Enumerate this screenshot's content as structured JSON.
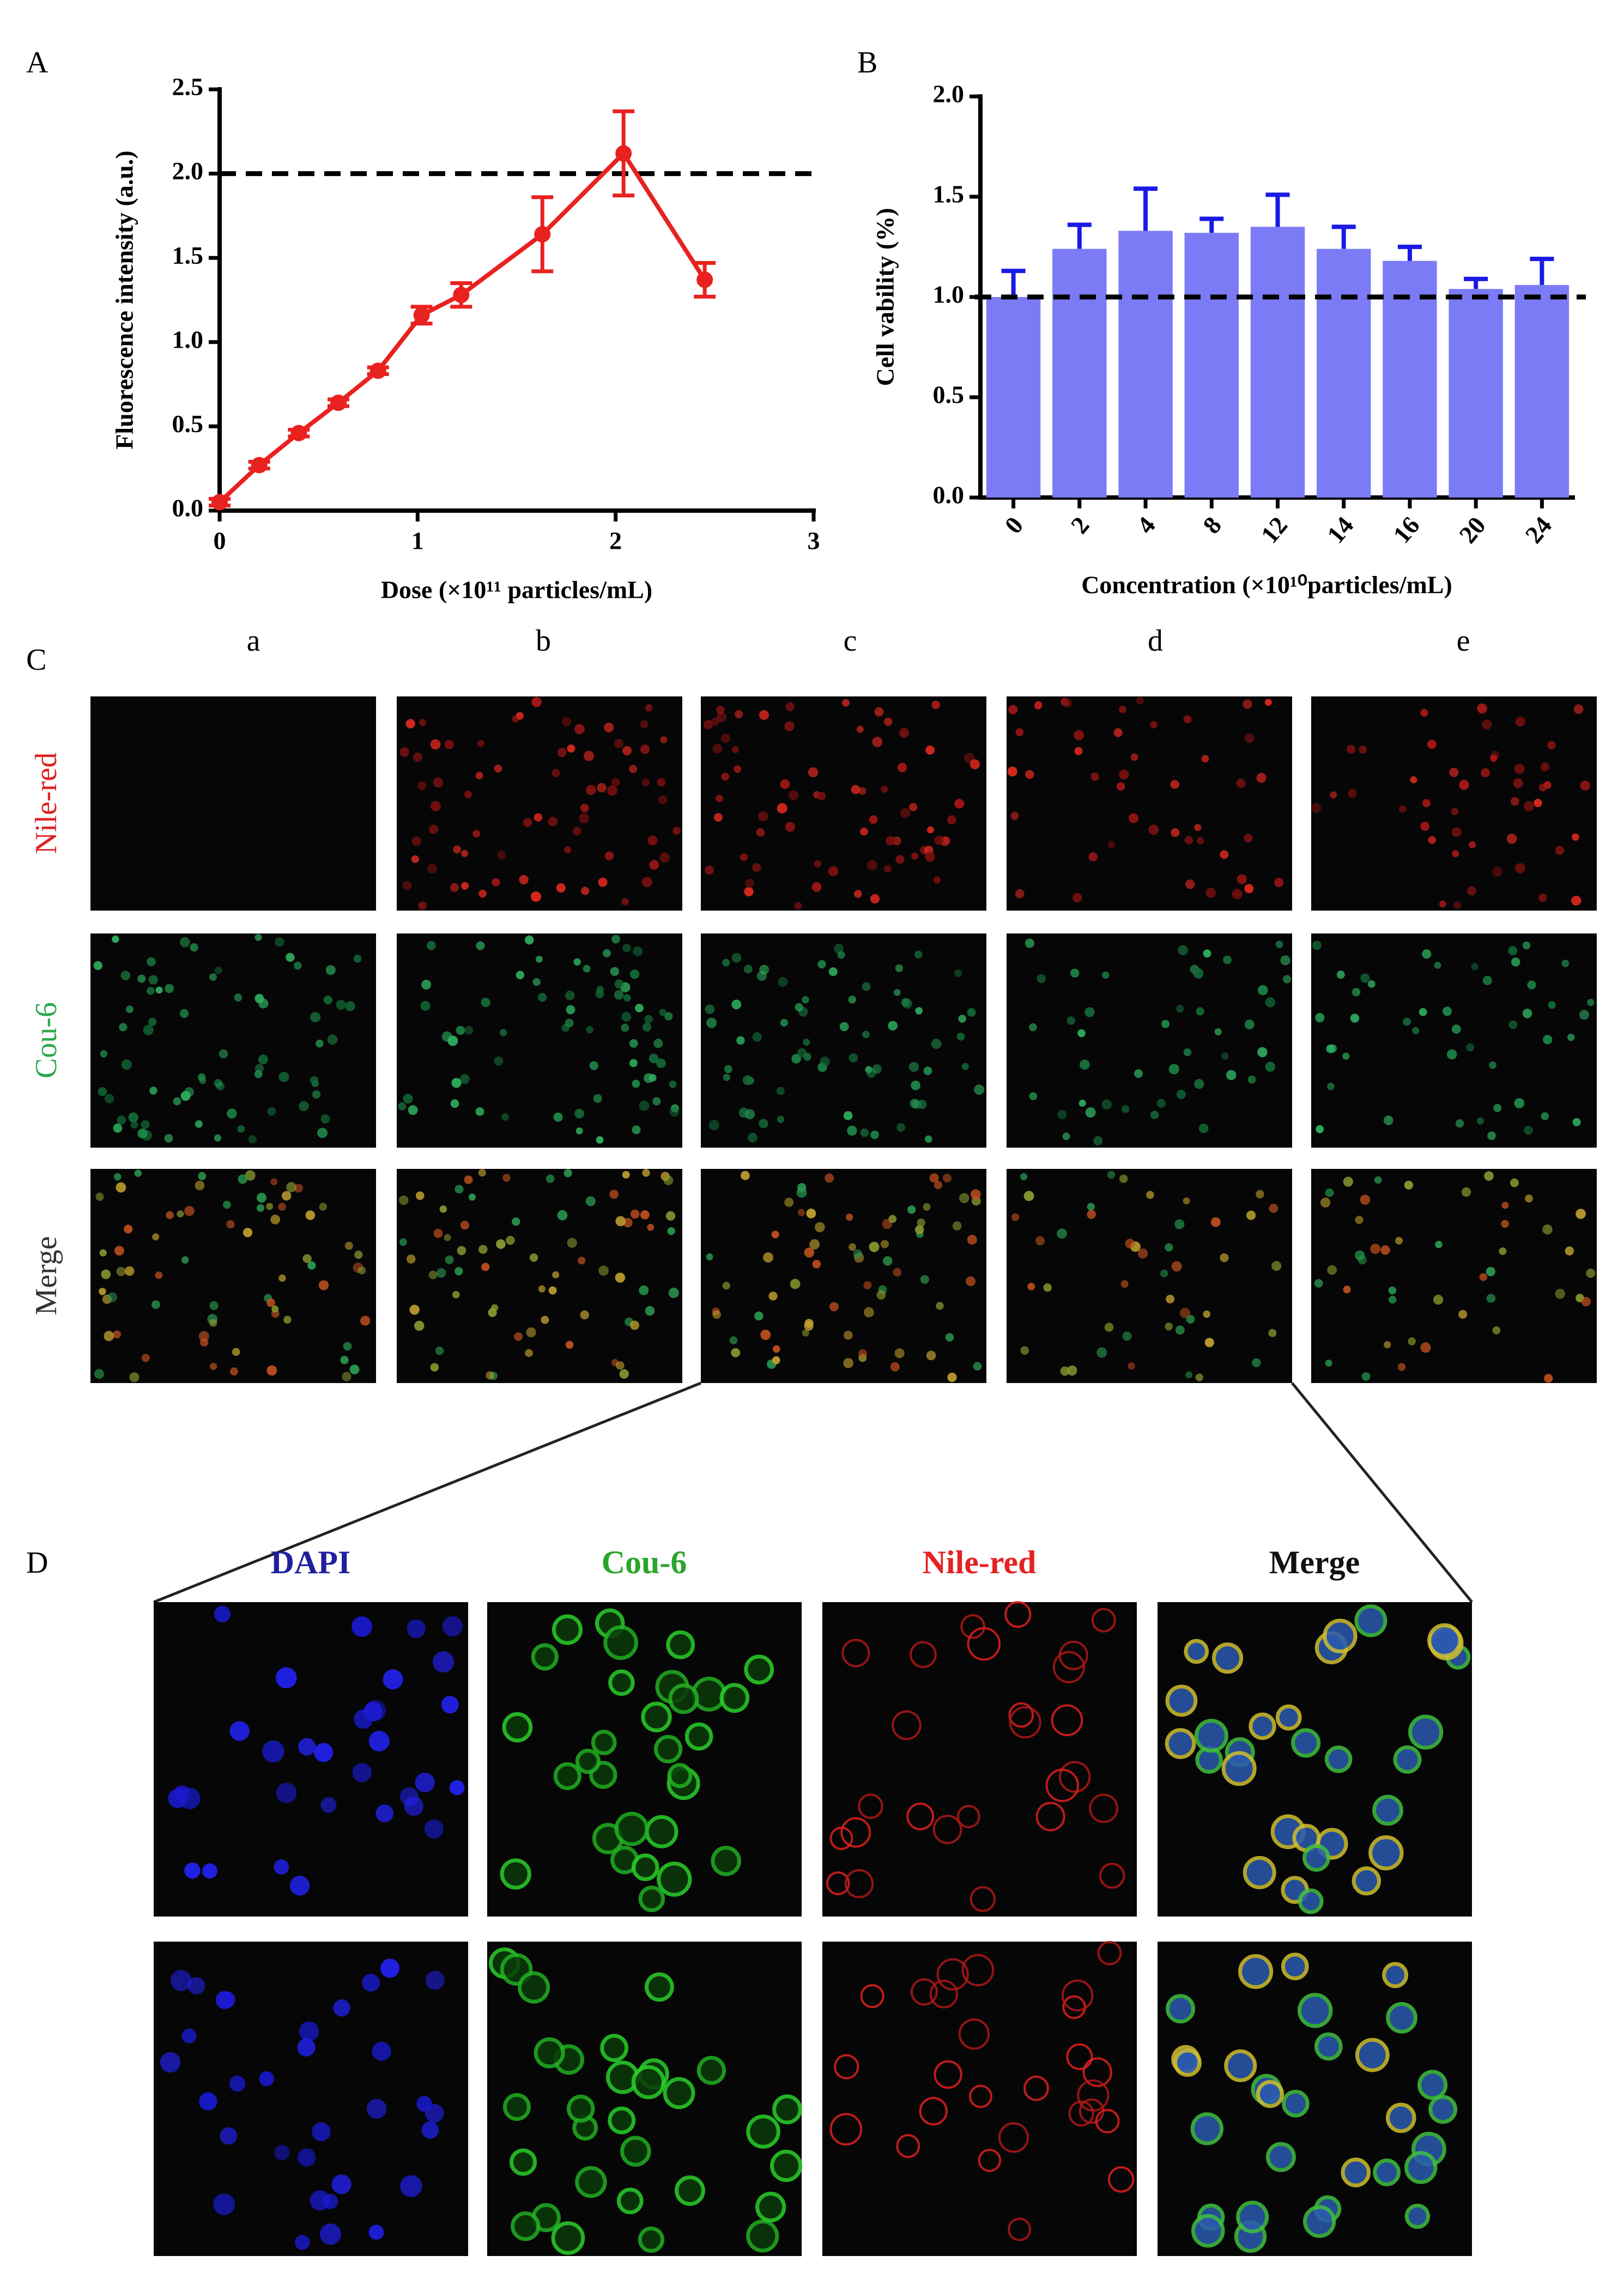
{
  "chart_data": [
    {
      "type": "line",
      "panel": "A",
      "ylabel": "Fluorescence intensity (a.u.)",
      "xlabel": "Dose (×10¹¹ particles/mL)",
      "x": [
        0,
        0.2,
        0.4,
        0.6,
        0.8,
        1.02,
        1.22,
        1.63,
        2.04,
        2.45
      ],
      "series": [
        {
          "color": "#e8221f",
          "values": [
            0.05,
            0.27,
            0.46,
            0.64,
            0.83,
            1.16,
            1.28,
            1.64,
            2.12,
            1.37
          ],
          "errors": [
            0.02,
            0.02,
            0.02,
            0.02,
            0.02,
            0.05,
            0.07,
            0.22,
            0.25,
            0.1
          ]
        }
      ],
      "xlim": [
        0,
        3
      ],
      "xticks": [
        0,
        1,
        2,
        3
      ],
      "ylim": [
        0,
        2.5
      ],
      "yticks": [
        {
          "value": 0,
          "label": "0.0"
        },
        0.5,
        {
          "value": 1,
          "label": "1.0"
        },
        1.5,
        {
          "value": 2,
          "label": "2.0"
        },
        2.5
      ],
      "reference_line": 2
    },
    {
      "type": "bar",
      "panel": "B",
      "ylabel": "Cell vability (%)",
      "xlabel": "Concentration (×10¹⁰particles/mL)",
      "categories": [
        "0",
        "2",
        "4",
        "8",
        "12",
        "14",
        "16",
        "20",
        "24"
      ],
      "values": [
        1.0,
        1.24,
        1.33,
        1.32,
        1.35,
        1.24,
        1.18,
        1.04,
        1.06
      ],
      "errors": [
        0.13,
        0.12,
        0.21,
        0.07,
        0.16,
        0.11,
        0.07,
        0.05,
        0.13
      ],
      "color": "#7b7bf6",
      "error_color": "#1a1ae6",
      "ylim": [
        0,
        2
      ],
      "yticks": [
        {
          "value": 0,
          "label": "0.0"
        },
        0.5,
        {
          "value": 1,
          "label": "1.0"
        },
        1.5,
        {
          "value": 2,
          "label": "2.0"
        }
      ],
      "reference_line": 1
    }
  ],
  "panel_c": {
    "panel": "C",
    "columns": [
      "a",
      "b",
      "c",
      "d",
      "e"
    ],
    "rows": [
      "Nile-red",
      "Cou-6",
      "Merge"
    ]
  },
  "panel_d": {
    "panel": "D",
    "columns": [
      "DAPI",
      "Cou-6",
      "Nile-red",
      "Merge"
    ]
  }
}
